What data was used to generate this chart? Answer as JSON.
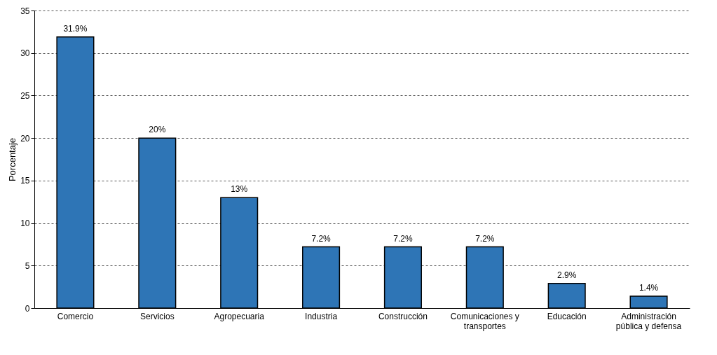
{
  "chart_data": {
    "type": "bar",
    "ylabel": "Porcentaje",
    "categories": [
      "Comercio",
      "Servicios",
      "Agropecuaria",
      "Industria",
      "Construcción",
      "Comunicaciones y transportes",
      "Educación",
      "Administración pública y defensa"
    ],
    "values": [
      31.9,
      20,
      13,
      7.2,
      7.2,
      7.2,
      2.9,
      1.4
    ],
    "value_labels": [
      "31.9%",
      "20%",
      "13%",
      "7.2%",
      "7.2%",
      "7.2%",
      "2.9%",
      "1.4%"
    ],
    "color": "#2e75b6",
    "ylim": [
      0,
      35
    ],
    "yticks": [
      0,
      5,
      10,
      15,
      20,
      25,
      30,
      35
    ],
    "grid": "y"
  }
}
